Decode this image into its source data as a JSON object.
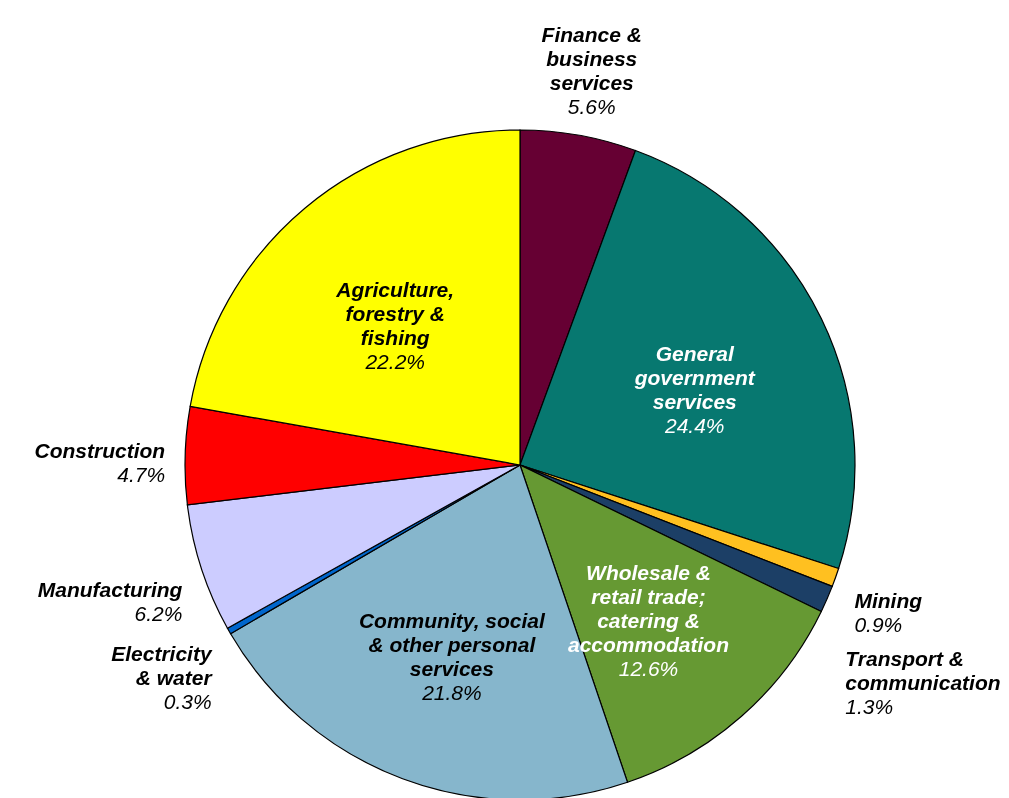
{
  "chart_data": {
    "type": "pie",
    "categories": [
      "Finance & business services",
      "General government services",
      "Mining",
      "Transport & communication",
      "Wholesale & retail trade; catering & accommodation",
      "Community, social & other personal services",
      "Electricity & water",
      "Manufacturing",
      "Construction",
      "Agriculture, forestry & fishing"
    ],
    "values": [
      5.6,
      24.4,
      0.9,
      1.3,
      12.6,
      21.8,
      0.3,
      6.2,
      4.7,
      22.2
    ],
    "colors": [
      "#660033",
      "#077870",
      "#ffc020",
      "#1c3f66",
      "#669933",
      "#86b6cc",
      "#0066cc",
      "#ccccff",
      "#ff0000",
      "#ffff00"
    ],
    "value_labels": [
      "5.6%",
      "24.4%",
      "0.9%",
      "1.3%",
      "12.6%",
      "21.8%",
      "0.3%",
      "6.2%",
      "4.7%",
      "22.2%"
    ]
  }
}
